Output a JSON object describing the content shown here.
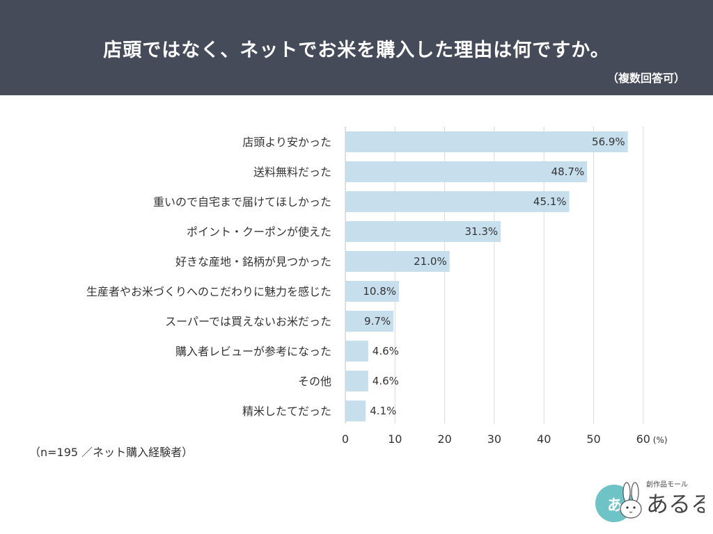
{
  "header": {
    "title": "店頭ではなく、ネットでお米を購入した理由は何ですか。",
    "subtitle": "（複数回答可）"
  },
  "footnote": "（n=195 ／ネット購入経験者）",
  "logo": {
    "tagline": "創作品モール",
    "name": "あるる"
  },
  "colors": {
    "header_bg": "#464b59",
    "bar": "#c7deed",
    "grid": "#d9d9d9"
  },
  "chart_data": {
    "type": "bar",
    "orientation": "horizontal",
    "categories": [
      "店頭より安かった",
      "送料無料だった",
      "重いので自宅まで届けてほしかった",
      "ポイント・クーポンが使えた",
      "好きな産地・銘柄が見つかった",
      "生産者やお米づくりへのこだわりに魅力を感じた",
      "スーパーでは買えないお米だった",
      "購入者レビューが参考になった",
      "その他",
      "精米したてだった"
    ],
    "values": [
      56.9,
      48.7,
      45.1,
      31.3,
      21.0,
      10.8,
      9.7,
      4.6,
      4.6,
      4.1
    ],
    "value_labels": [
      "56.9%",
      "48.7%",
      "45.1%",
      "31.3%",
      "21.0%",
      "10.8%",
      "9.7%",
      "4.6%",
      "4.6%",
      "4.1%"
    ],
    "xticks": [
      0,
      10,
      20,
      30,
      40,
      50,
      60
    ],
    "xlim": [
      0,
      60
    ],
    "x_unit": "(%)",
    "grid": true
  }
}
